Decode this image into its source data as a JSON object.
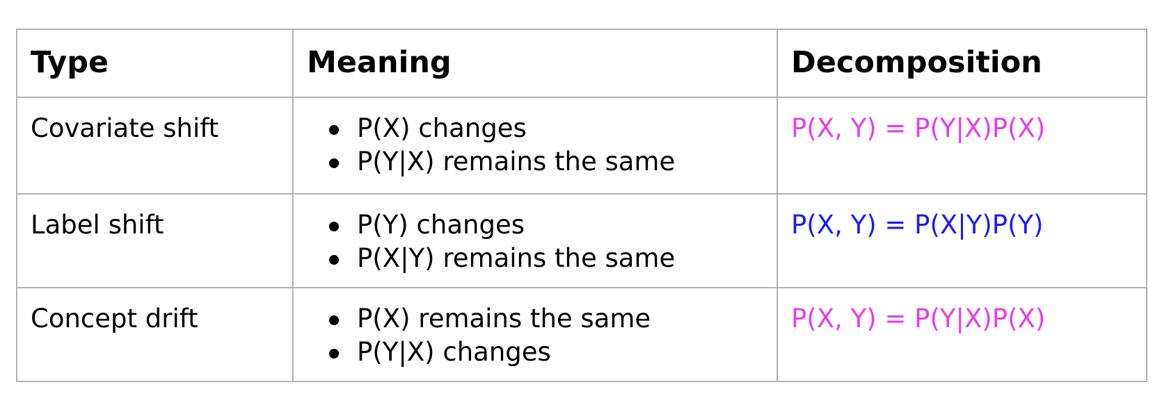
{
  "table": {
    "headers": [
      "Type",
      "Meaning",
      "Decomposition"
    ],
    "rows": [
      {
        "type": "Covariate shift",
        "meaning": [
          "P(X) changes",
          "P(Y|X) remains the same"
        ],
        "decomposition": "P(X, Y) = P(Y|X)P(X)",
        "decomposition_color": "#e83de8"
      },
      {
        "type": "Label shift",
        "meaning": [
          "P(Y) changes",
          "P(X|Y) remains the same"
        ],
        "decomposition": "P(X, Y) = P(X|Y)P(Y)",
        "decomposition_color": "#1a1aff"
      },
      {
        "type": "Concept drift",
        "meaning": [
          "P(X) remains the same",
          "P(Y|X) changes"
        ],
        "decomposition": "P(X, Y) = P(Y|X)P(X)",
        "decomposition_color": "#e83de8"
      }
    ]
  },
  "colors": {
    "border": "#b3b3b3",
    "text": "#000000",
    "background": "#ffffff"
  }
}
